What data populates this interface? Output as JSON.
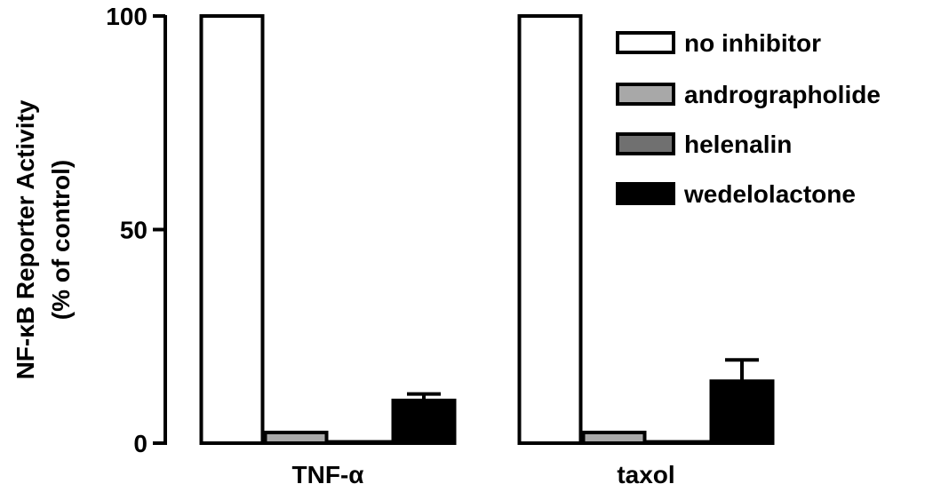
{
  "chart_data": {
    "type": "bar",
    "title": "",
    "xlabel": "",
    "ylabel_line1": "NF-κB Reporter Activity",
    "ylabel_line2": "(% of control)",
    "ylim": [
      0,
      100
    ],
    "yticks": [
      "0",
      "50",
      "100"
    ],
    "ytick_values": [
      0,
      50,
      100
    ],
    "categories": [
      "TNF-α",
      "taxol"
    ],
    "legend_position": "top-right",
    "series": [
      {
        "name": "no inhibitor",
        "values": [
          100,
          100
        ],
        "errors": [
          0,
          0
        ],
        "color": "#ffffff"
      },
      {
        "name": "andrographolide",
        "values": [
          2.5,
          2.5
        ],
        "errors": [
          0,
          0
        ],
        "color": "#a8a8a8"
      },
      {
        "name": "helenalin",
        "values": [
          0.3,
          0.3
        ],
        "errors": [
          0,
          0
        ],
        "color": "#707070"
      },
      {
        "name": "wedelolactone",
        "values": [
          10,
          14.5
        ],
        "errors": [
          1.5,
          5
        ],
        "color": "#000000"
      }
    ]
  }
}
